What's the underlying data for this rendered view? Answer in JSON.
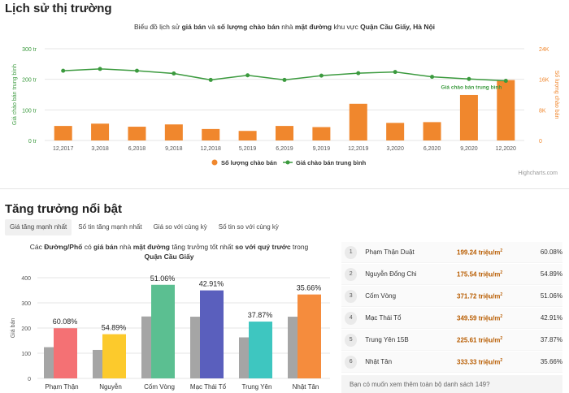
{
  "section1_title": "Lịch sử thị trường",
  "chart1_subtitle_parts": [
    "Biểu đồ lịch sử ",
    "giá bán",
    " và ",
    "số lượng chào bán",
    " nhà ",
    "mặt đường",
    " khu vực ",
    "Quận Cầu Giấy, Hà Nội"
  ],
  "credit": "Highcharts.com",
  "section2_title": "Tăng trưởng nổi bật",
  "tabs": [
    "Giá tăng mạnh nhất",
    "Số tin tăng mạnh nhất",
    "Giá so với cùng kỳ",
    "Số tin so với cùng kỳ"
  ],
  "desc_parts": [
    "Các ",
    "Đường/Phố",
    " có ",
    "giá bán",
    " nhà ",
    "mặt đường",
    " tăng trưởng tốt nhất ",
    "so với quý trước",
    " trong ",
    "Quận Cầu Giấy"
  ],
  "ranking": [
    {
      "rank": "1",
      "name": "Phạm Thận Duật",
      "price": "199.24 triệu/m",
      "pct": "60.08%"
    },
    {
      "rank": "2",
      "name": "Nguyễn Đổng Chi",
      "price": "175.54 triệu/m",
      "pct": "54.89%"
    },
    {
      "rank": "3",
      "name": "Cốm Vòng",
      "price": "371.72 triệu/m",
      "pct": "51.06%"
    },
    {
      "rank": "4",
      "name": "Mạc Thái Tổ",
      "price": "349.59 triệu/m",
      "pct": "42.91%"
    },
    {
      "rank": "5",
      "name": "Trung Yên 15B",
      "price": "225.61 triệu/m",
      "pct": "37.87%"
    },
    {
      "rank": "6",
      "name": "Nhật Tân",
      "price": "333.33 triệu/m",
      "pct": "35.66%"
    }
  ],
  "more_question": "Bạn có muốn xem thêm toàn bộ danh sách 149?",
  "chart_data": [
    {
      "type": "bar",
      "categories": [
        "12,2017",
        "3,2018",
        "6,2018",
        "9,2018",
        "12,2018",
        "5,2019",
        "6,2019",
        "9,2019",
        "12,2019",
        "3,2020",
        "6,2020",
        "9,2020",
        "12,2020"
      ],
      "series": [
        {
          "name": "Số lượng chào bán",
          "type": "bar",
          "axis": "right",
          "color": "#f0872d",
          "values": [
            3800,
            4400,
            3600,
            4200,
            3000,
            2500,
            3800,
            3500,
            9600,
            4600,
            4800,
            11900,
            15800
          ]
        },
        {
          "name": "Giá chào bán trung bình",
          "type": "line",
          "axis": "left",
          "color": "#3b9a3e",
          "values": [
            228,
            234,
            228,
            219,
            198,
            213,
            198,
            212,
            220,
            224,
            208,
            201,
            195
          ]
        }
      ],
      "left_axis": {
        "label": "Giá chào bán trung bình",
        "ticks": [
          "0 tr",
          "100 tr",
          "200 tr",
          "300 tr"
        ],
        "range": [
          0,
          300
        ]
      },
      "right_axis": {
        "label": "Số lượng chào bán",
        "ticks": [
          "0",
          "8K",
          "16K",
          "24K"
        ],
        "range": [
          0,
          24000
        ]
      },
      "line_label": "Giá chào bán trung bình",
      "legend": "bottom-center"
    },
    {
      "type": "bar",
      "categories": [
        "Phạm Thận",
        "Nguyễn",
        "Cốm Vòng",
        "Mạc Thái Tổ",
        "Trung Yên",
        "Nhật Tân"
      ],
      "series": [
        {
          "name": "previous",
          "color": "#a5a5a5",
          "values": [
            124,
            113,
            246,
            245,
            163,
            245
          ]
        },
        {
          "name": "current",
          "colors": [
            "#f47174",
            "#fcca2c",
            "#5bbf91",
            "#5a5fbd",
            "#3ec6c0",
            "#f58c3d"
          ],
          "values": [
            199.24,
            175.54,
            371.72,
            349.59,
            225.61,
            333.33
          ]
        }
      ],
      "labels": [
        "60.08%",
        "54.89%",
        "51.06%",
        "42.91%",
        "37.87%",
        "35.66%"
      ],
      "ylabel": "Giá bán",
      "y_ticks": [
        "0",
        "100",
        "200",
        "300",
        "400"
      ],
      "ylim": [
        0,
        400
      ]
    }
  ]
}
